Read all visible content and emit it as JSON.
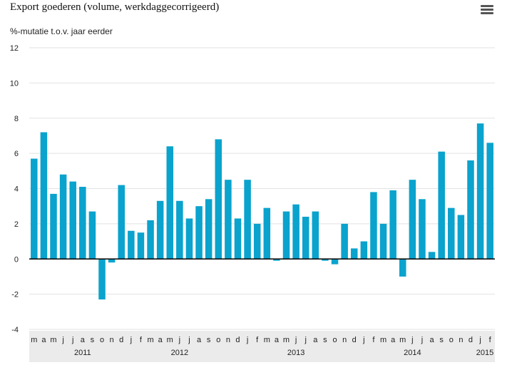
{
  "header": {
    "title": "Export goederen (volume, werkdaggecorrigeerd)",
    "menu_icon": "hamburger-menu-icon"
  },
  "colors": {
    "bar": "#0aa3cd",
    "axis": "#000000",
    "grid": "#e2e2e2",
    "x_band": "#ebebeb"
  },
  "chart_data": {
    "type": "bar",
    "title": "Export goederen (volume, werkdaggecorrigeerd)",
    "ylabel": "%-mutatie t.o.v. jaar eerder",
    "xlabel": "",
    "ylim": [
      -4,
      12
    ],
    "yticks": [
      -4,
      -2,
      0,
      2,
      4,
      6,
      8,
      10,
      12
    ],
    "grid": true,
    "categories": [
      "m",
      "a",
      "m",
      "j",
      "j",
      "a",
      "s",
      "o",
      "n",
      "d",
      "j",
      "f",
      "m",
      "a",
      "m",
      "j",
      "j",
      "a",
      "s",
      "o",
      "n",
      "d",
      "j",
      "f",
      "m",
      "a",
      "m",
      "j",
      "j",
      "a",
      "s",
      "o",
      "n",
      "d",
      "j",
      "f",
      "m",
      "a",
      "m",
      "j",
      "j",
      "a",
      "s",
      "o",
      "n",
      "d",
      "j",
      "f"
    ],
    "values": [
      5.7,
      7.2,
      3.7,
      4.8,
      4.4,
      4.1,
      2.7,
      -2.3,
      -0.2,
      4.2,
      1.6,
      1.5,
      2.2,
      3.3,
      6.4,
      3.3,
      2.3,
      3.0,
      3.4,
      6.8,
      4.5,
      2.3,
      4.5,
      2.0,
      2.9,
      -0.1,
      2.7,
      3.1,
      2.4,
      2.7,
      -0.1,
      -0.3,
      2.0,
      0.6,
      1.0,
      3.8,
      2.0,
      3.9,
      -1.0,
      4.5,
      3.4,
      0.4,
      6.1,
      2.9,
      2.5,
      5.6,
      7.7,
      6.6
    ],
    "year_labels": [
      {
        "label": "2011",
        "index": 5
      },
      {
        "label": "2012",
        "index": 15
      },
      {
        "label": "2013",
        "index": 27
      },
      {
        "label": "2014",
        "index": 39
      },
      {
        "label": "2015",
        "index": 46.5
      }
    ]
  }
}
